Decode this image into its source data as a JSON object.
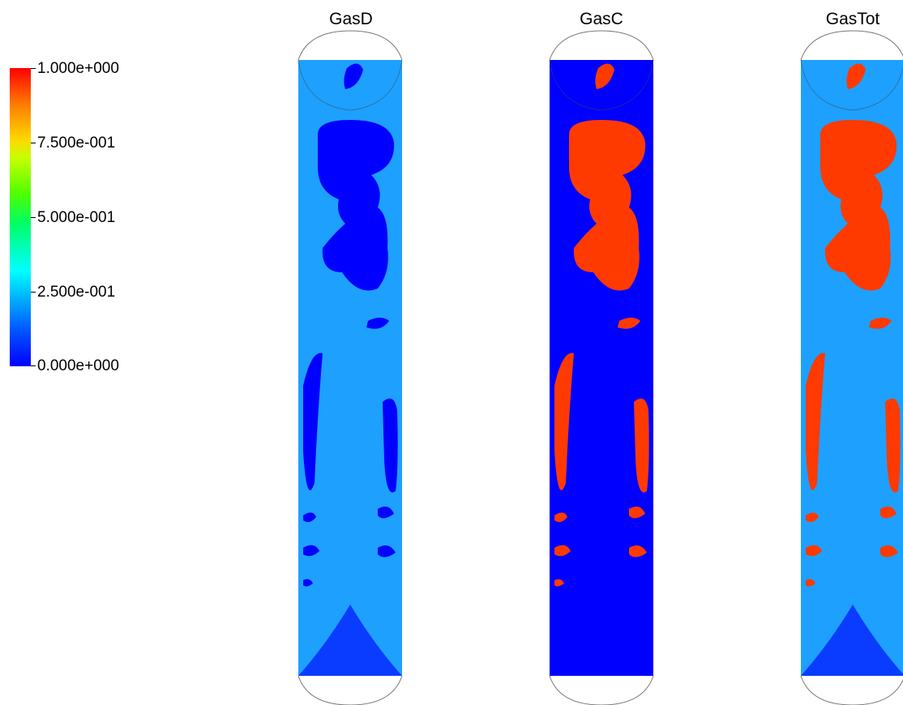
{
  "legend": {
    "ticks": [
      "1.000e+000",
      "7.500e-001",
      "5.000e-001",
      "2.500e-001",
      "0.000e+000"
    ],
    "range": [
      0,
      1
    ],
    "colormap": [
      "#0000ff",
      "#00aaff",
      "#00ffff",
      "#00ff64",
      "#50ff00",
      "#ffd800",
      "#ff7a00",
      "#ff0000"
    ]
  },
  "panels": [
    {
      "title": "GasD",
      "background": "#1ea0ff",
      "blob": "#0000ff",
      "base": "#0a3cff"
    },
    {
      "title": "GasC",
      "background": "#0000ff",
      "blob": "#ff3a00",
      "base": "#0000ff"
    },
    {
      "title": "GasTot",
      "background": "#1ea0ff",
      "blob": "#ff3a00",
      "base": "#0a3cff"
    }
  ]
}
